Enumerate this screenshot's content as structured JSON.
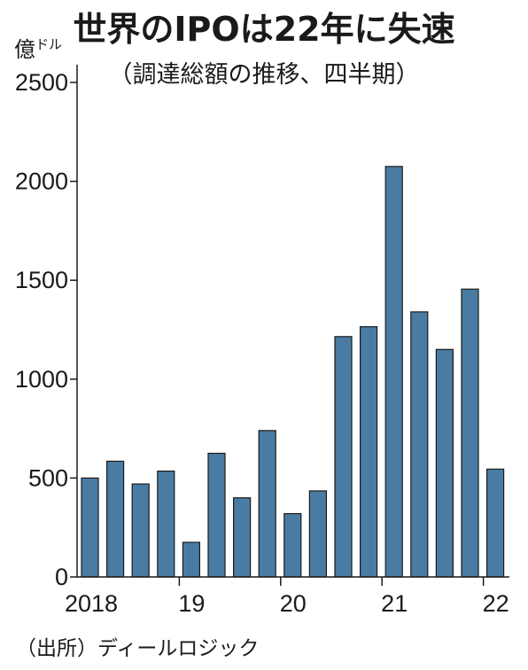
{
  "header": {
    "title": "世界のIPOは22年に失速",
    "subtitle": "（調達総額の推移、四半期）",
    "unit_main": "億",
    "unit_small": "ドル"
  },
  "footer": {
    "source": "（出所）ディールロジック"
  },
  "colors": {
    "bar": "#4a7ca3",
    "bar_stroke": "#1a1a1a",
    "axis": "#1a1a1a"
  },
  "chart_data": {
    "type": "bar",
    "title": "世界のIPOは22年に失速",
    "subtitle": "（調達総額の推移、四半期）",
    "ylabel": "億ドル",
    "ylim": [
      0,
      2500
    ],
    "yticks": [
      0,
      500,
      1000,
      1500,
      2000,
      2500
    ],
    "xtick_labels": [
      "2018",
      "19",
      "20",
      "21",
      "22"
    ],
    "categories": [
      "2018Q1",
      "2018Q2",
      "2018Q3",
      "2018Q4",
      "2019Q1",
      "2019Q2",
      "2019Q3",
      "2019Q4",
      "2020Q1",
      "2020Q2",
      "2020Q3",
      "2020Q4",
      "2021Q1",
      "2021Q2",
      "2021Q3",
      "2021Q4",
      "2022Q1"
    ],
    "values": [
      500,
      585,
      470,
      535,
      175,
      625,
      400,
      740,
      320,
      435,
      1215,
      1265,
      2075,
      1340,
      1150,
      1455,
      545
    ],
    "grid": false
  }
}
